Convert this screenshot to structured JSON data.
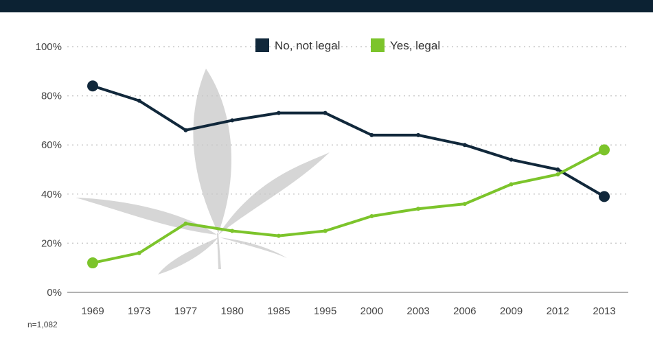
{
  "chart_data": {
    "type": "line",
    "categories": [
      "1969",
      "1973",
      "1977",
      "1980",
      "1985",
      "1995",
      "2000",
      "2003",
      "2006",
      "2009",
      "2012",
      "2013"
    ],
    "series": [
      {
        "name": "No, not legal",
        "color": "#11283b",
        "values": [
          84,
          78,
          66,
          70,
          73,
          73,
          64,
          64,
          60,
          54,
          50,
          39
        ]
      },
      {
        "name": "Yes, legal",
        "color": "#7cc42b",
        "values": [
          12,
          16,
          28,
          25,
          23,
          25,
          31,
          34,
          36,
          44,
          48,
          58
        ]
      }
    ],
    "yticks": [
      "0%",
      "20%",
      "40%",
      "60%",
      "80%",
      "100%"
    ],
    "ylim": [
      0,
      100
    ],
    "grid": true,
    "legend_position": "top-center",
    "note": "n=1,082"
  }
}
